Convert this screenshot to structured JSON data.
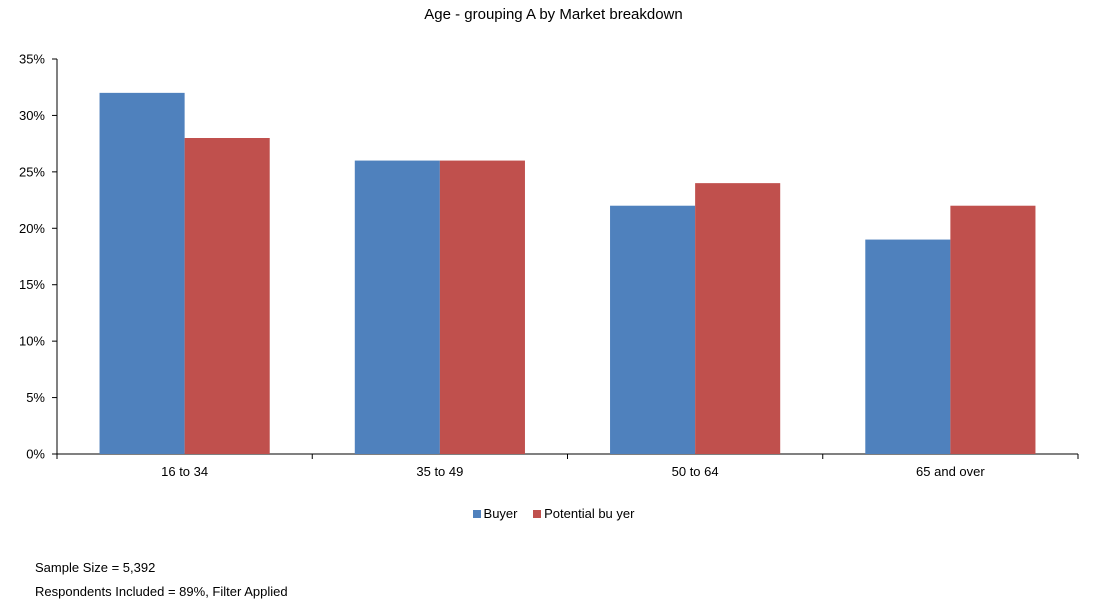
{
  "chart_data": {
    "type": "bar",
    "title": "Age - grouping A by Market breakdown",
    "categories": [
      "16 to 34",
      "35 to 49",
      "50 to 64",
      "65 and over"
    ],
    "series": [
      {
        "name": "Buyer",
        "color": "#4f81bd",
        "values": [
          32,
          26,
          22,
          19
        ]
      },
      {
        "name": "Potential bu yer",
        "color": "#c0504d",
        "values": [
          28,
          26,
          24,
          22
        ]
      }
    ],
    "y_ticks": [
      "0%",
      "5%",
      "10%",
      "15%",
      "20%",
      "25%",
      "30%",
      "35%"
    ],
    "ylim": [
      0,
      35
    ],
    "y_unit": "%",
    "xlabel": "",
    "ylabel": "",
    "grid": false,
    "legend_position": "bottom"
  },
  "footer": {
    "sample_size": "Sample Size = 5,392",
    "respondents": "Respondents Included = 89%, Filter Applied"
  }
}
